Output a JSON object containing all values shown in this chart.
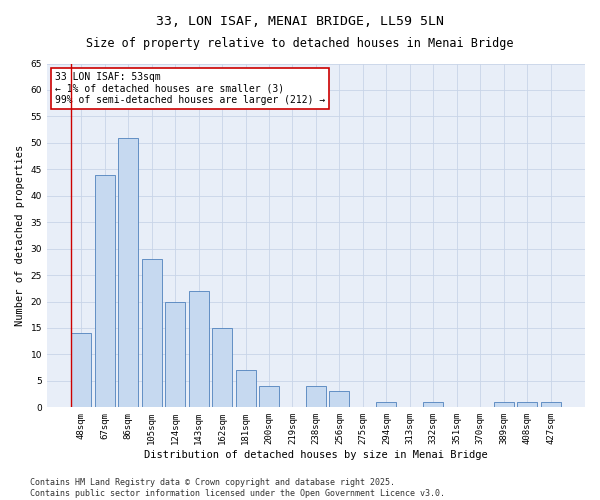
{
  "title": "33, LON ISAF, MENAI BRIDGE, LL59 5LN",
  "subtitle": "Size of property relative to detached houses in Menai Bridge",
  "xlabel": "Distribution of detached houses by size in Menai Bridge",
  "ylabel": "Number of detached properties",
  "categories": [
    "48sqm",
    "67sqm",
    "86sqm",
    "105sqm",
    "124sqm",
    "143sqm",
    "162sqm",
    "181sqm",
    "200sqm",
    "219sqm",
    "238sqm",
    "256sqm",
    "275sqm",
    "294sqm",
    "313sqm",
    "332sqm",
    "351sqm",
    "370sqm",
    "389sqm",
    "408sqm",
    "427sqm"
  ],
  "values": [
    14,
    44,
    51,
    28,
    20,
    22,
    15,
    7,
    4,
    0,
    4,
    3,
    0,
    1,
    0,
    1,
    0,
    0,
    1,
    1,
    1
  ],
  "bar_color": "#c6d9f0",
  "bar_edge_color": "#4f81bd",
  "annotation_text": "33 LON ISAF: 53sqm\n← 1% of detached houses are smaller (3)\n99% of semi-detached houses are larger (212) →",
  "annotation_box_color": "#ffffff",
  "annotation_box_edge": "#cc0000",
  "ylim": [
    0,
    65
  ],
  "yticks": [
    0,
    5,
    10,
    15,
    20,
    25,
    30,
    35,
    40,
    45,
    50,
    55,
    60,
    65
  ],
  "grid_color": "#c8d4e8",
  "bg_color": "#e8eef8",
  "footer": "Contains HM Land Registry data © Crown copyright and database right 2025.\nContains public sector information licensed under the Open Government Licence v3.0.",
  "title_fontsize": 9.5,
  "subtitle_fontsize": 8.5,
  "axis_label_fontsize": 7.5,
  "tick_fontsize": 6.5,
  "annotation_fontsize": 7,
  "footer_fontsize": 6
}
